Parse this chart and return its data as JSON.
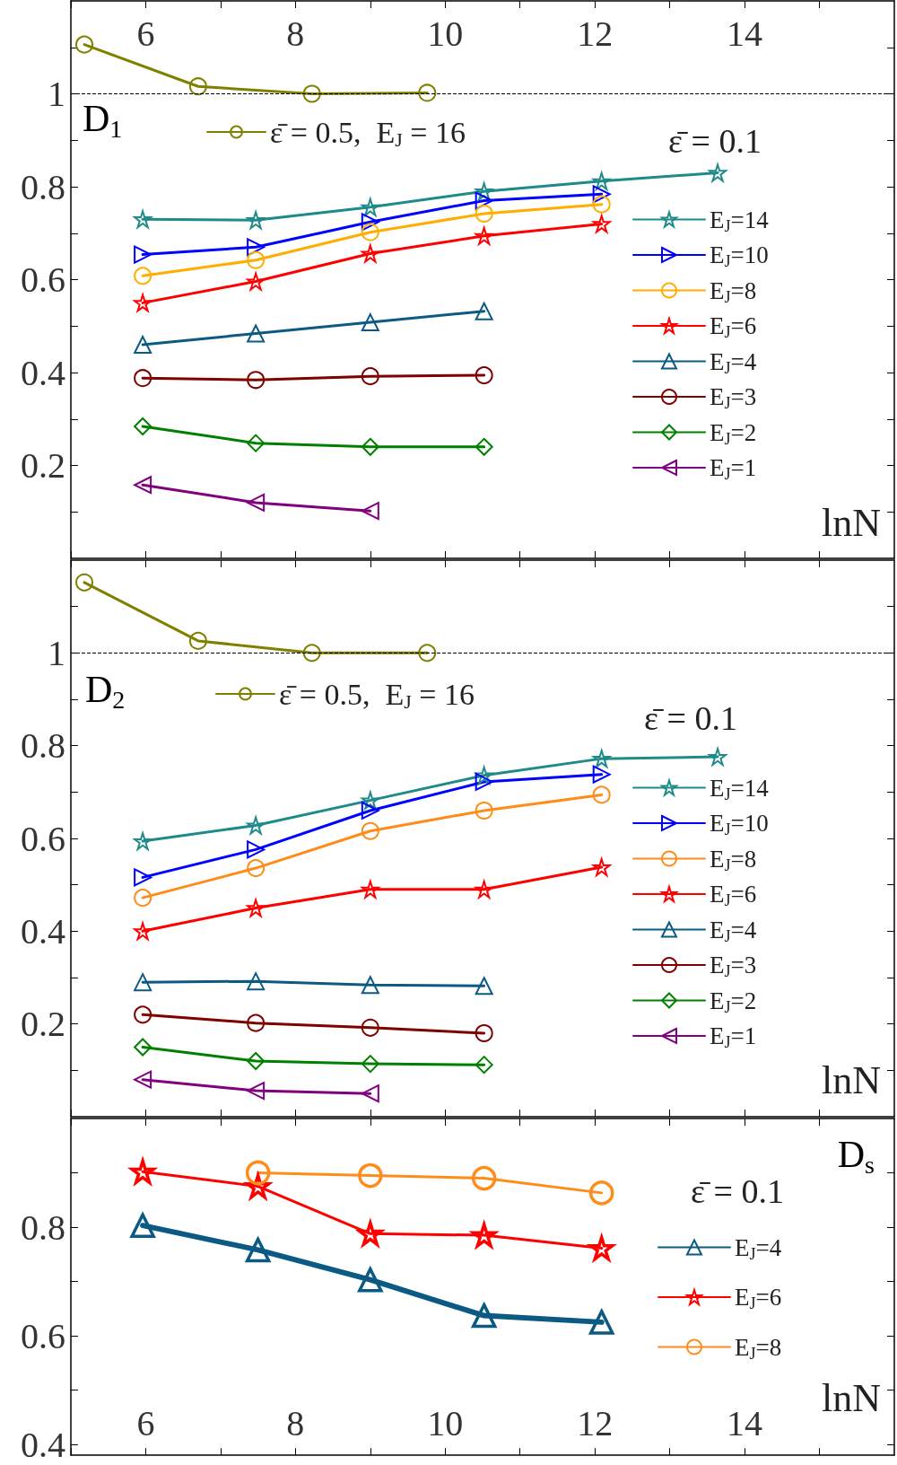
{
  "chart_data": [
    {
      "type": "line",
      "title": "D$_{1}$",
      "xlabel": "lnN",
      "legend_title": "ε̄ = 0.1",
      "legend": "right",
      "grid": false,
      "xlim": [
        5,
        16
      ],
      "ylim": [
        0,
        1.2
      ],
      "xticks": [
        {
          "value": 5,
          "label": null
        },
        6,
        {
          "value": 7,
          "label": null
        },
        8,
        {
          "value": 9,
          "label": null
        },
        10,
        {
          "value": 11,
          "label": null
        },
        12,
        {
          "value": 13,
          "label": null
        },
        14,
        {
          "value": 15,
          "label": null
        }
      ],
      "yticks": [
        {
          "value": 0.1,
          "label": null
        },
        0.2,
        {
          "value": 0.3,
          "label": null
        },
        0.4,
        {
          "value": 0.5,
          "label": null
        },
        0.6,
        {
          "value": 0.7,
          "label": null
        },
        0.8,
        {
          "value": 0.9,
          "label": null
        },
        1,
        {
          "value": 1.1,
          "label": null
        }
      ],
      "ref_lines": [
        {
          "axis": "y",
          "value": 1,
          "color": "#000000",
          "line_style": "dashed"
        }
      ],
      "series": [
        {
          "name": "ε̄ = 0.5,  E$_{J}$ = 16",
          "color": "#808000",
          "marker": "circle",
          "x": [
            5.18,
            6.7,
            8.22,
            9.76
          ],
          "values": [
            1.106,
            1.016,
            1.0,
            1.002
          ]
        },
        {
          "name": "E$_{J}$=14",
          "color": "#1f8a8a",
          "marker": "star",
          "x": [
            5.96,
            7.47,
            9.0,
            10.52,
            12.09,
            13.64
          ],
          "values": [
            0.73,
            0.728,
            0.756,
            0.79,
            0.812,
            0.83
          ]
        },
        {
          "name": "E$_{J}$=10",
          "color": "#0000ff",
          "marker": "triangle-right",
          "x": [
            5.96,
            7.47,
            9.0,
            10.52,
            12.09
          ],
          "values": [
            0.654,
            0.67,
            0.724,
            0.77,
            0.784
          ]
        },
        {
          "name": "E$_{J}$=8",
          "color": "#ffad00",
          "marker": "circle",
          "x": [
            5.96,
            7.47,
            9.0,
            10.52,
            12.09
          ],
          "values": [
            0.608,
            0.642,
            0.702,
            0.742,
            0.762
          ]
        },
        {
          "name": "E$_{J}$=6",
          "color": "#ff0000",
          "marker": "star",
          "x": [
            5.96,
            7.47,
            9.0,
            10.52,
            12.09
          ],
          "values": [
            0.55,
            0.596,
            0.656,
            0.694,
            0.72
          ]
        },
        {
          "name": "E$_{J}$=4",
          "color": "#0b5a84",
          "marker": "triangle",
          "x": [
            5.96,
            7.47,
            9.0,
            10.52
          ],
          "values": [
            0.46,
            0.484,
            0.508,
            0.532
          ]
        },
        {
          "name": "E$_{J}$=3",
          "color": "#800000",
          "marker": "circle",
          "x": [
            5.96,
            7.47,
            9.0,
            10.52
          ],
          "values": [
            0.388,
            0.384,
            0.392,
            0.394
          ]
        },
        {
          "name": "E$_{J}$=2",
          "color": "#008000",
          "marker": "diamond",
          "x": [
            5.96,
            7.47,
            9.0,
            10.52
          ],
          "values": [
            0.284,
            0.248,
            0.24,
            0.24
          ]
        },
        {
          "name": "E$_{J}$=1",
          "color": "#800080",
          "marker": "triangle-left",
          "x": [
            5.96,
            7.47,
            9.0
          ],
          "values": [
            0.158,
            0.12,
            0.102
          ]
        }
      ]
    },
    {
      "type": "line",
      "title": "D$_{2}$",
      "xlabel": "lnN",
      "legend_title": "ε̄ = 0.1",
      "legend": "right",
      "grid": false,
      "tick_labels": "y",
      "xlim": [
        5,
        16
      ],
      "ylim": [
        0,
        1.2
      ],
      "xticks": [
        {
          "value": 5,
          "label": null
        },
        {
          "value": 6,
          "label": null
        },
        {
          "value": 7,
          "label": null
        },
        {
          "value": 8,
          "label": null
        },
        {
          "value": 9,
          "label": null
        },
        {
          "value": 10,
          "label": null
        },
        {
          "value": 11,
          "label": null
        },
        {
          "value": 12,
          "label": null
        },
        {
          "value": 13,
          "label": null
        },
        {
          "value": 14,
          "label": null
        },
        {
          "value": 15,
          "label": null
        }
      ],
      "yticks": [
        {
          "value": 0.1,
          "label": null
        },
        0.2,
        {
          "value": 0.3,
          "label": null
        },
        0.4,
        {
          "value": 0.5,
          "label": null
        },
        0.6,
        {
          "value": 0.7,
          "label": null
        },
        0.8,
        {
          "value": 0.9,
          "label": null
        },
        1,
        {
          "value": 1.1,
          "label": null
        }
      ],
      "ref_lines": [
        {
          "axis": "y",
          "value": 1,
          "color": "#000000",
          "line_style": "dashed"
        }
      ],
      "series": [
        {
          "name": "ε̄ = 0.5,  E$_{J}$ = 16",
          "color": "#808000",
          "marker": "circle",
          "x": [
            5.18,
            6.7,
            8.22,
            9.76
          ],
          "values": [
            1.152,
            1.026,
            1.0,
            1.0
          ]
        },
        {
          "name": "E$_{J}$=14",
          "color": "#1f8a8a",
          "marker": "star",
          "x": [
            5.96,
            7.47,
            9.0,
            10.52,
            12.09,
            13.64
          ],
          "values": [
            0.594,
            0.628,
            0.682,
            0.736,
            0.772,
            0.776
          ]
        },
        {
          "name": "E$_{J}$=10",
          "color": "#0000ff",
          "marker": "triangle-right",
          "x": [
            5.96,
            7.47,
            9.0,
            10.52,
            12.09
          ],
          "values": [
            0.516,
            0.576,
            0.66,
            0.722,
            0.738
          ]
        },
        {
          "name": "E$_{J}$=8",
          "color": "#ff8c1a",
          "marker": "circle",
          "x": [
            5.96,
            7.47,
            9.0,
            10.52,
            12.09
          ],
          "values": [
            0.472,
            0.536,
            0.616,
            0.66,
            0.694
          ]
        },
        {
          "name": "E$_{J}$=6",
          "color": "#ff0000",
          "marker": "star",
          "x": [
            5.96,
            7.47,
            9.0,
            10.52,
            12.09
          ],
          "values": [
            0.4,
            0.45,
            0.49,
            0.49,
            0.538
          ]
        },
        {
          "name": "E$_{J}$=4",
          "color": "#0b5a84",
          "marker": "triangle",
          "x": [
            5.96,
            7.47,
            9.0,
            10.52
          ],
          "values": [
            0.29,
            0.292,
            0.284,
            0.282
          ]
        },
        {
          "name": "E$_{J}$=3",
          "color": "#800000",
          "marker": "circle",
          "x": [
            5.96,
            7.47,
            9.0,
            10.52
          ],
          "values": [
            0.22,
            0.202,
            0.192,
            0.18
          ]
        },
        {
          "name": "E$_{J}$=2",
          "color": "#008000",
          "marker": "diamond",
          "x": [
            5.96,
            7.47,
            9.0,
            10.52
          ],
          "values": [
            0.15,
            0.12,
            0.114,
            0.112
          ]
        },
        {
          "name": "E$_{J}$=1",
          "color": "#800080",
          "marker": "triangle-left",
          "x": [
            5.96,
            7.47,
            9.0
          ],
          "values": [
            0.08,
            0.056,
            0.05
          ]
        }
      ]
    },
    {
      "type": "line",
      "title": "D$_{s}$",
      "xlabel": "lnN",
      "legend_title": "ε̄ = 0.1",
      "legend": "right",
      "grid": false,
      "xlim": [
        5,
        16
      ],
      "ylim": [
        0.38,
        1.0
      ],
      "xticks": [
        {
          "value": 5,
          "label": null
        },
        6,
        {
          "value": 7,
          "label": null
        },
        8,
        {
          "value": 9,
          "label": null
        },
        10,
        {
          "value": 11,
          "label": null
        },
        12,
        {
          "value": 13,
          "label": null
        },
        14,
        {
          "value": 15,
          "label": null
        }
      ],
      "yticks": [
        0.4,
        {
          "value": 0.5,
          "label": null
        },
        0.6,
        {
          "value": 0.7,
          "label": null
        },
        0.8,
        {
          "value": 0.9,
          "label": null
        }
      ],
      "series": [
        {
          "name": "E$_{J}$=4",
          "color": "#0b5a84",
          "marker": "triangle",
          "x": [
            5.96,
            7.5,
            9.0,
            10.52,
            12.09
          ],
          "values": [
            0.803,
            0.758,
            0.703,
            0.637,
            0.625
          ]
        },
        {
          "name": "E$_{J}$=6",
          "color": "#ff0000",
          "marker": "star",
          "x": [
            5.96,
            7.5,
            9.0,
            10.52,
            12.09
          ],
          "values": [
            0.902,
            0.875,
            0.788,
            0.785,
            0.761
          ]
        },
        {
          "name": "E$_{J}$=8",
          "color": "#ff8c1a",
          "marker": "circle",
          "x": [
            7.5,
            9.0,
            10.52,
            12.09
          ],
          "values": [
            0.9,
            0.895,
            0.89,
            0.863
          ]
        }
      ]
    }
  ]
}
